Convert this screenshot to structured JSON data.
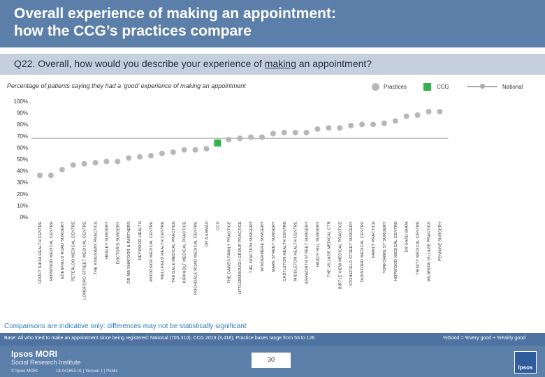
{
  "title": [
    "Overall experience of making an appointment:",
    "how the CCG’s practices compare"
  ],
  "question": {
    "prefix": "Q22. Overall, how would you describe your experience of ",
    "underlined": "making",
    "suffix": " an appointment?"
  },
  "subtitle": "Percentage of patients saying they had a ‘good’ experience of making an appointment",
  "legend": {
    "practices": "Practices",
    "ccg": "CCG",
    "national": "National"
  },
  "colors": {
    "practice": "#b7b7b7",
    "ccg": "#2fb34a",
    "national": "#aaaaaa",
    "header": "#5b7fa9"
  },
  "chart_data": {
    "type": "scatter",
    "title": "Percentage of patients saying they had a ‘good’ experience of making an appointment",
    "xlabel": "",
    "ylabel": "",
    "ylim": [
      0,
      100
    ],
    "yticks": [
      "0%",
      "10%",
      "20%",
      "30%",
      "40%",
      "50%",
      "60%",
      "70%",
      "80%",
      "90%",
      "100%"
    ],
    "national": 68,
    "categories": [
      "CROFT SHIFA HEALTH CENTRE",
      "HOPWOOD MEDICAL CENTRE",
      "EDENFIELD ROAD SURGERY",
      "PETERLOO MEDICAL CENTRE",
      "LONGFORD STREET MEDICAL CENTRE",
      "THE KINGSWAY PRACTICE",
      "HEALEY SURGERY",
      "DOCTOR'S SURGERY",
      "DR MB SHAFOOR & PARTNERS",
      "HEYWOOD HEALTH",
      "WOODSIDE MEDICAL CENTRE",
      "WELLFIELD HEALTH CENTRE",
      "THE DALE MEDICAL PRACTICE",
      "KIRKHOLT MEDICAL PRACTICE",
      "ROCHDALE ROAD MEDICAL CENTRE",
      "DR A AHMAD",
      "CCG",
      "THE DAWES FAMILY PRACTICE",
      "LITTLEBOROUGH GROUP PRACTICE",
      "THE JUNCTION SURGERY",
      "WINDERMERE SURGERY",
      "MARK STREET SURGERY",
      "CASTLETON HEALTH CENTRE",
      "MIDDLETON HEALTH CENTRE",
      "ASHWORTH STREET SURGERY",
      "HEADY HILL SURGERY",
      "THE VILLAGE MEDICAL CTR",
      "BIRTLE VIEW MEDICAL PRACTICE",
      "STONEFIELD STREET SURGERY",
      "DUNSFORD MEDICAL CENTRE",
      "FAMILY PRACTICE",
      "YORKSHIRE ST SURGERY",
      "HOPWOOD MEDICAL CENTRE",
      "DR SAAD BHUA",
      "TRINITY MEDICAL CENTRE",
      "MILNROW VILLAGE PRACTICE",
      "PENNINE SURGERY"
    ],
    "values": [
      36,
      36,
      41,
      45,
      46,
      47,
      48,
      48,
      51,
      52,
      53,
      55,
      56,
      58,
      58,
      59,
      64,
      67,
      68,
      69,
      69,
      72,
      73,
      73,
      73,
      76,
      77,
      77,
      79,
      80,
      80,
      81,
      83,
      87,
      88,
      91,
      91
    ]
  },
  "notes": {
    "comparisons": "Comparisons are indicative only: differences may not be statistically significant",
    "base": "Base: All who tried to make an appointment since being registered: National (705,310); CCG 2019 (3,418); Practice bases range from 53 to 126",
    "good": "%Good = %Very good + %Fairly good"
  },
  "footer": {
    "brand": "Ipsos MORI",
    "brand_sub": "Social Research Institute",
    "copyright": "© Ipsos MORI",
    "jobref": "18-042653-01 | Version 1 | Public",
    "page": "30",
    "logo": "Ipsos"
  }
}
